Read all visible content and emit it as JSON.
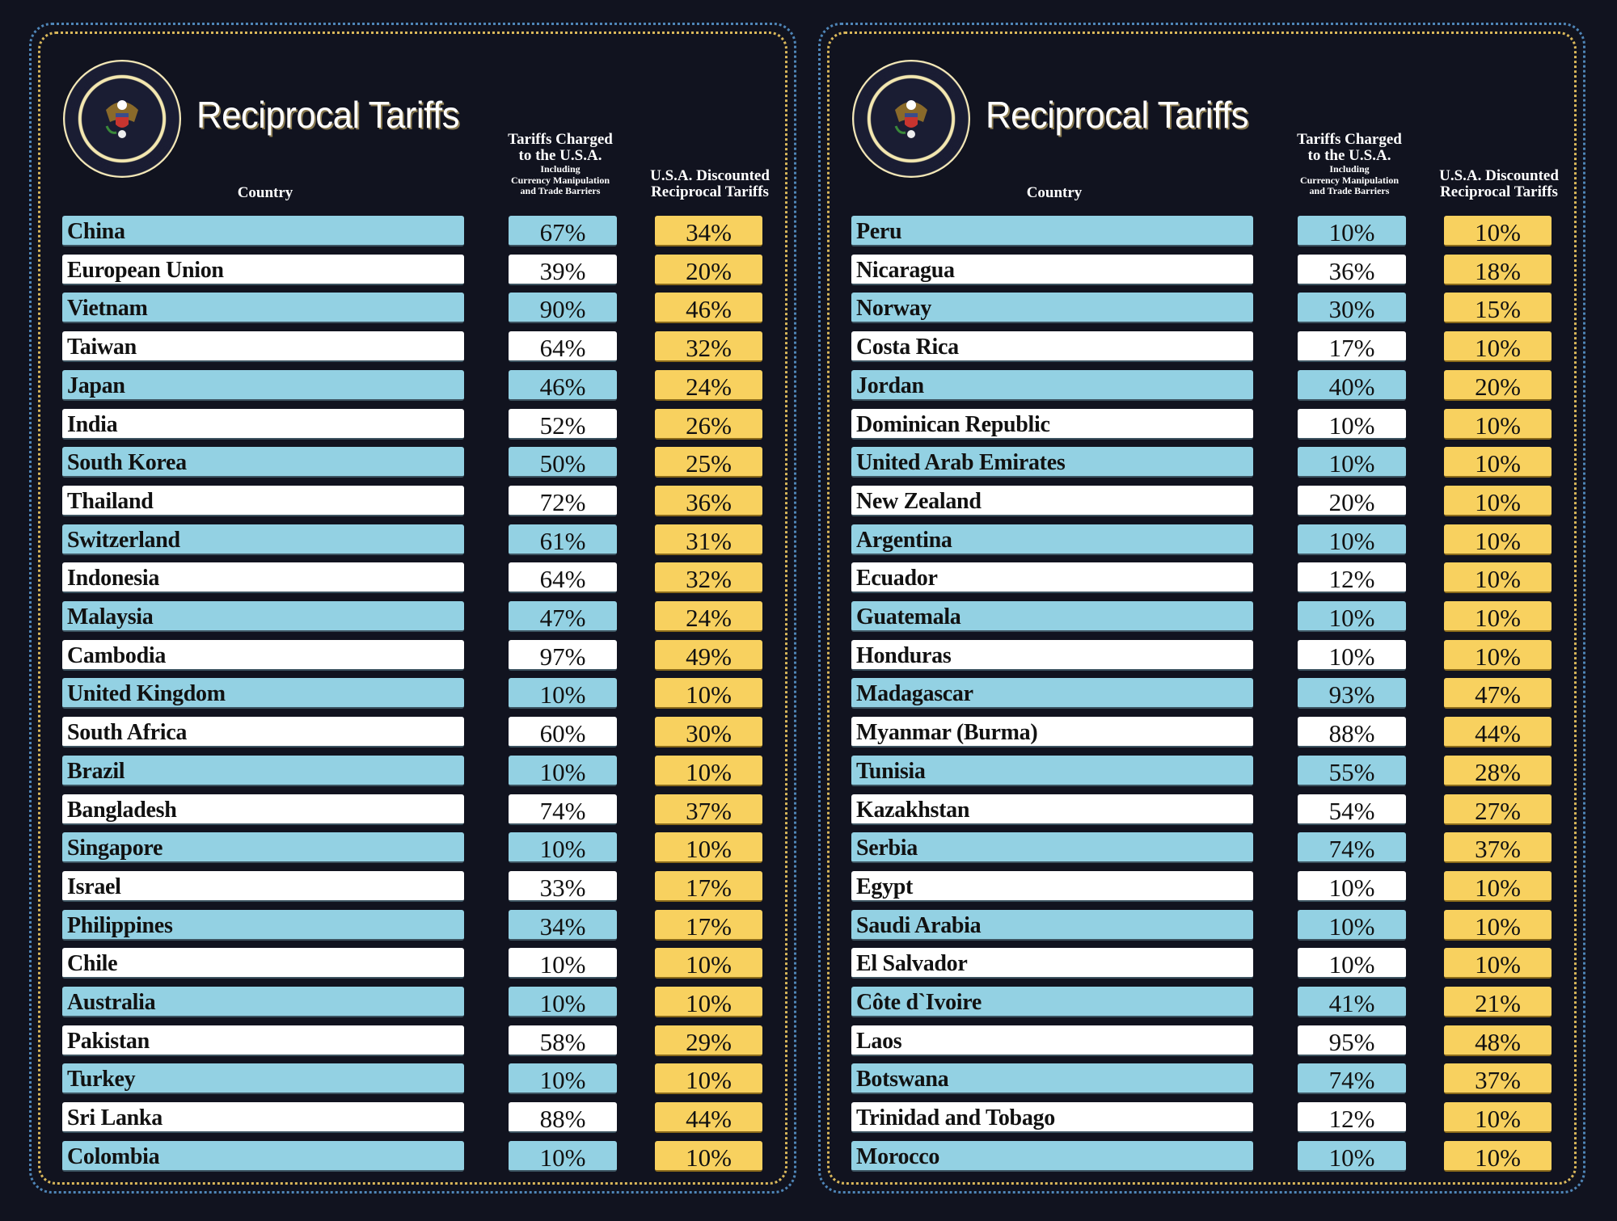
{
  "colors": {
    "band_blue": "#93d1e3",
    "band_white": "#ffffff",
    "discount_gold": "#f8d15f",
    "background": "#11131f"
  },
  "seal": {
    "text": "SEAL OF THE PRESIDENT OF THE UNITED STATES"
  },
  "panels": [
    {
      "title": "Reciprocal Tariffs",
      "headers": {
        "country": "Country",
        "tariffs_line1": "Tariffs Charged",
        "tariffs_line2": "to the U.S.A.",
        "tariffs_line3": "Including",
        "tariffs_line4": "Currency Manipulation",
        "tariffs_line5": "and Trade Barriers",
        "discount_line1": "U.S.A. Discounted",
        "discount_line2": "Reciprocal Tariffs"
      },
      "rows": [
        {
          "country": "China",
          "charged": "67%",
          "reciprocal": "34%"
        },
        {
          "country": "European Union",
          "charged": "39%",
          "reciprocal": "20%"
        },
        {
          "country": "Vietnam",
          "charged": "90%",
          "reciprocal": "46%"
        },
        {
          "country": "Taiwan",
          "charged": "64%",
          "reciprocal": "32%"
        },
        {
          "country": "Japan",
          "charged": "46%",
          "reciprocal": "24%"
        },
        {
          "country": "India",
          "charged": "52%",
          "reciprocal": "26%"
        },
        {
          "country": "South Korea",
          "charged": "50%",
          "reciprocal": "25%"
        },
        {
          "country": "Thailand",
          "charged": "72%",
          "reciprocal": "36%"
        },
        {
          "country": "Switzerland",
          "charged": "61%",
          "reciprocal": "31%"
        },
        {
          "country": "Indonesia",
          "charged": "64%",
          "reciprocal": "32%"
        },
        {
          "country": "Malaysia",
          "charged": "47%",
          "reciprocal": "24%"
        },
        {
          "country": "Cambodia",
          "charged": "97%",
          "reciprocal": "49%"
        },
        {
          "country": "United Kingdom",
          "charged": "10%",
          "reciprocal": "10%"
        },
        {
          "country": "South Africa",
          "charged": "60%",
          "reciprocal": "30%"
        },
        {
          "country": "Brazil",
          "charged": "10%",
          "reciprocal": "10%"
        },
        {
          "country": "Bangladesh",
          "charged": "74%",
          "reciprocal": "37%"
        },
        {
          "country": "Singapore",
          "charged": "10%",
          "reciprocal": "10%"
        },
        {
          "country": "Israel",
          "charged": "33%",
          "reciprocal": "17%"
        },
        {
          "country": "Philippines",
          "charged": "34%",
          "reciprocal": "17%"
        },
        {
          "country": "Chile",
          "charged": "10%",
          "reciprocal": "10%"
        },
        {
          "country": "Australia",
          "charged": "10%",
          "reciprocal": "10%"
        },
        {
          "country": "Pakistan",
          "charged": "58%",
          "reciprocal": "29%"
        },
        {
          "country": "Turkey",
          "charged": "10%",
          "reciprocal": "10%"
        },
        {
          "country": "Sri Lanka",
          "charged": "88%",
          "reciprocal": "44%"
        },
        {
          "country": "Colombia",
          "charged": "10%",
          "reciprocal": "10%"
        }
      ]
    },
    {
      "title": "Reciprocal Tariffs",
      "headers": {
        "country": "Country",
        "tariffs_line1": "Tariffs Charged",
        "tariffs_line2": "to the U.S.A.",
        "tariffs_line3": "Including",
        "tariffs_line4": "Currency Manipulation",
        "tariffs_line5": "and Trade Barriers",
        "discount_line1": "U.S.A. Discounted",
        "discount_line2": "Reciprocal Tariffs"
      },
      "rows": [
        {
          "country": "Peru",
          "charged": "10%",
          "reciprocal": "10%"
        },
        {
          "country": "Nicaragua",
          "charged": "36%",
          "reciprocal": "18%"
        },
        {
          "country": "Norway",
          "charged": "30%",
          "reciprocal": "15%"
        },
        {
          "country": "Costa Rica",
          "charged": "17%",
          "reciprocal": "10%"
        },
        {
          "country": "Jordan",
          "charged": "40%",
          "reciprocal": "20%"
        },
        {
          "country": "Dominican Republic",
          "charged": "10%",
          "reciprocal": "10%"
        },
        {
          "country": "United Arab Emirates",
          "charged": "10%",
          "reciprocal": "10%"
        },
        {
          "country": "New Zealand",
          "charged": "20%",
          "reciprocal": "10%"
        },
        {
          "country": "Argentina",
          "charged": "10%",
          "reciprocal": "10%"
        },
        {
          "country": "Ecuador",
          "charged": "12%",
          "reciprocal": "10%"
        },
        {
          "country": "Guatemala",
          "charged": "10%",
          "reciprocal": "10%"
        },
        {
          "country": "Honduras",
          "charged": "10%",
          "reciprocal": "10%"
        },
        {
          "country": "Madagascar",
          "charged": "93%",
          "reciprocal": "47%"
        },
        {
          "country": "Myanmar (Burma)",
          "charged": "88%",
          "reciprocal": "44%"
        },
        {
          "country": "Tunisia",
          "charged": "55%",
          "reciprocal": "28%"
        },
        {
          "country": "Kazakhstan",
          "charged": "54%",
          "reciprocal": "27%"
        },
        {
          "country": "Serbia",
          "charged": "74%",
          "reciprocal": "37%"
        },
        {
          "country": "Egypt",
          "charged": "10%",
          "reciprocal": "10%"
        },
        {
          "country": "Saudi Arabia",
          "charged": "10%",
          "reciprocal": "10%"
        },
        {
          "country": "El Salvador",
          "charged": "10%",
          "reciprocal": "10%"
        },
        {
          "country": "Côte d`Ivoire",
          "charged": "41%",
          "reciprocal": "21%"
        },
        {
          "country": "Laos",
          "charged": "95%",
          "reciprocal": "48%"
        },
        {
          "country": "Botswana",
          "charged": "74%",
          "reciprocal": "37%"
        },
        {
          "country": "Trinidad and Tobago",
          "charged": "12%",
          "reciprocal": "10%"
        },
        {
          "country": "Morocco",
          "charged": "10%",
          "reciprocal": "10%"
        }
      ]
    }
  ]
}
